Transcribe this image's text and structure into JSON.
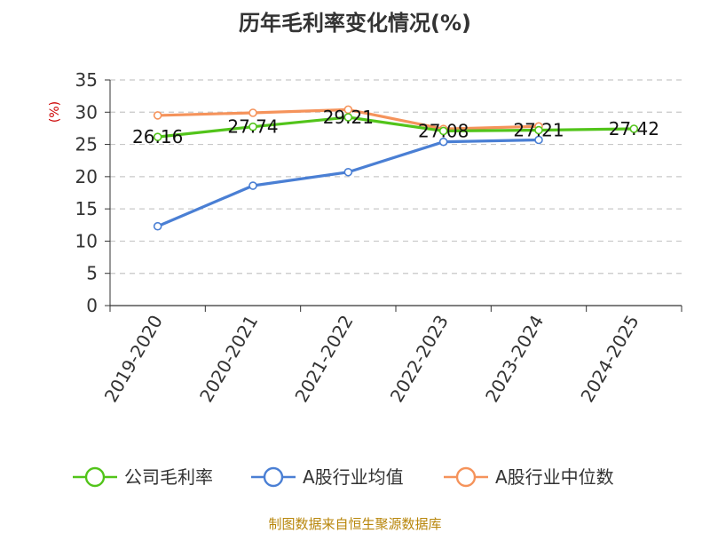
{
  "chart_data": {
    "type": "line",
    "title": "历年毛利率变化情况(%)",
    "ylabel": "(%)",
    "xlabel": "",
    "categories": [
      "2019-2020",
      "2020-2021",
      "2021-2022",
      "2022-2023",
      "2023-2024",
      "2024-2025"
    ],
    "ylim": [
      0,
      35
    ],
    "yticks": [
      0,
      5,
      10,
      15,
      20,
      25,
      30,
      35
    ],
    "grid": true,
    "legend_position": "bottom",
    "series": [
      {
        "name": "公司毛利率",
        "color": "#52c41a",
        "values": [
          26.16,
          27.74,
          29.21,
          27.08,
          27.21,
          27.42
        ],
        "labels": [
          "26.16",
          "27.74",
          "29.21",
          "27.08",
          "27.21",
          "27.42"
        ]
      },
      {
        "name": "A股行业均值",
        "color": "#4a7fd4",
        "values": [
          12.3,
          18.6,
          20.7,
          25.4,
          25.7,
          null
        ]
      },
      {
        "name": "A股行业中位数",
        "color": "#f5935b",
        "values": [
          29.5,
          29.9,
          30.4,
          27.4,
          27.8,
          null
        ]
      }
    ],
    "source": "制图数据来自恒生聚源数据库"
  }
}
